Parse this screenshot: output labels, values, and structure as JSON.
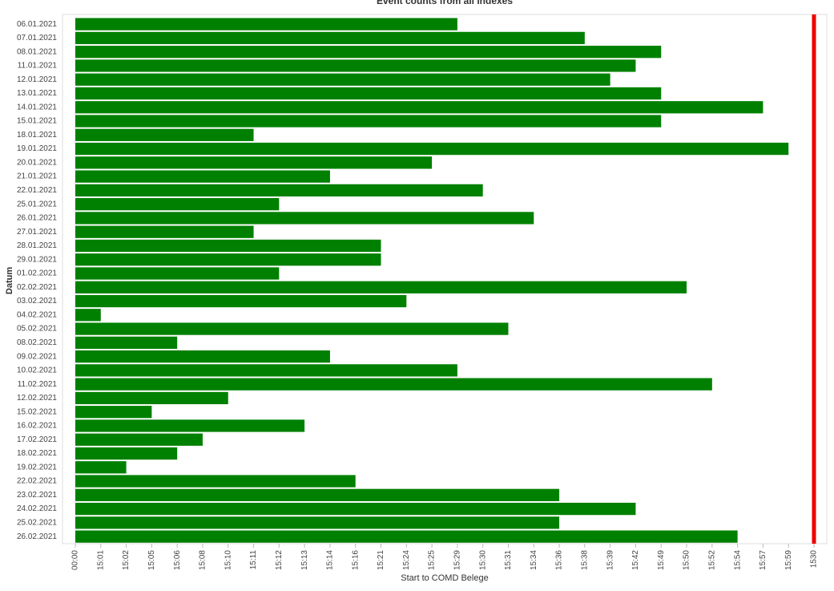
{
  "chart_data": {
    "type": "bar",
    "orientation": "horizontal",
    "title": "Event counts from all indexes",
    "x_label": "Start to COMD Belege",
    "y_label": "Datum",
    "categories": [
      "06.01.2021",
      "07.01.2021",
      "08.01.2021",
      "11.01.2021",
      "12.01.2021",
      "13.01.2021",
      "14.01.2021",
      "15.01.2021",
      "18.01.2021",
      "19.01.2021",
      "20.01.2021",
      "21.01.2021",
      "22.01.2021",
      "25.01.2021",
      "26.01.2021",
      "27.01.2021",
      "28.01.2021",
      "29.01.2021",
      "01.02.2021",
      "02.02.2021",
      "03.02.2021",
      "04.02.2021",
      "05.02.2021",
      "08.02.2021",
      "09.02.2021",
      "10.02.2021",
      "11.02.2021",
      "12.02.2021",
      "15.02.2021",
      "16.02.2021",
      "17.02.2021",
      "18.02.2021",
      "19.02.2021",
      "22.02.2021",
      "23.02.2021",
      "24.02.2021",
      "25.02.2021",
      "26.02.2021"
    ],
    "values": [
      "15:29",
      "15:38",
      "15:49",
      "15:42",
      "15:39",
      "15:49",
      "15:57",
      "15:49",
      "15:11",
      "15:59",
      "15:25",
      "15:14",
      "15:30",
      "15:12",
      "15:34",
      "15:11",
      "15:21",
      "15:21",
      "15:12",
      "15:50",
      "15:24",
      "15:01",
      "15:31",
      "15:06",
      "15:14",
      "15:29",
      "15:52",
      "15:10",
      "15:05",
      "15:13",
      "15:08",
      "15:06",
      "15:02",
      "15:16",
      "15:36",
      "15:42",
      "15:36",
      "15:54"
    ],
    "x_categories": [
      "00:00",
      "15:01",
      "15:02",
      "15:05",
      "15:06",
      "15:08",
      "15:10",
      "15:11",
      "15:12",
      "15:13",
      "15:14",
      "15:16",
      "15:21",
      "15:24",
      "15:25",
      "15:29",
      "15:30",
      "15:31",
      "15:34",
      "15:36",
      "15:38",
      "15:39",
      "15:42",
      "15:49",
      "15:50",
      "15:52",
      "15:54",
      "15:57",
      "15:59",
      "1530"
    ],
    "color": "#008000",
    "reference_line": {
      "value": "1530",
      "color": "#ee0000"
    }
  }
}
